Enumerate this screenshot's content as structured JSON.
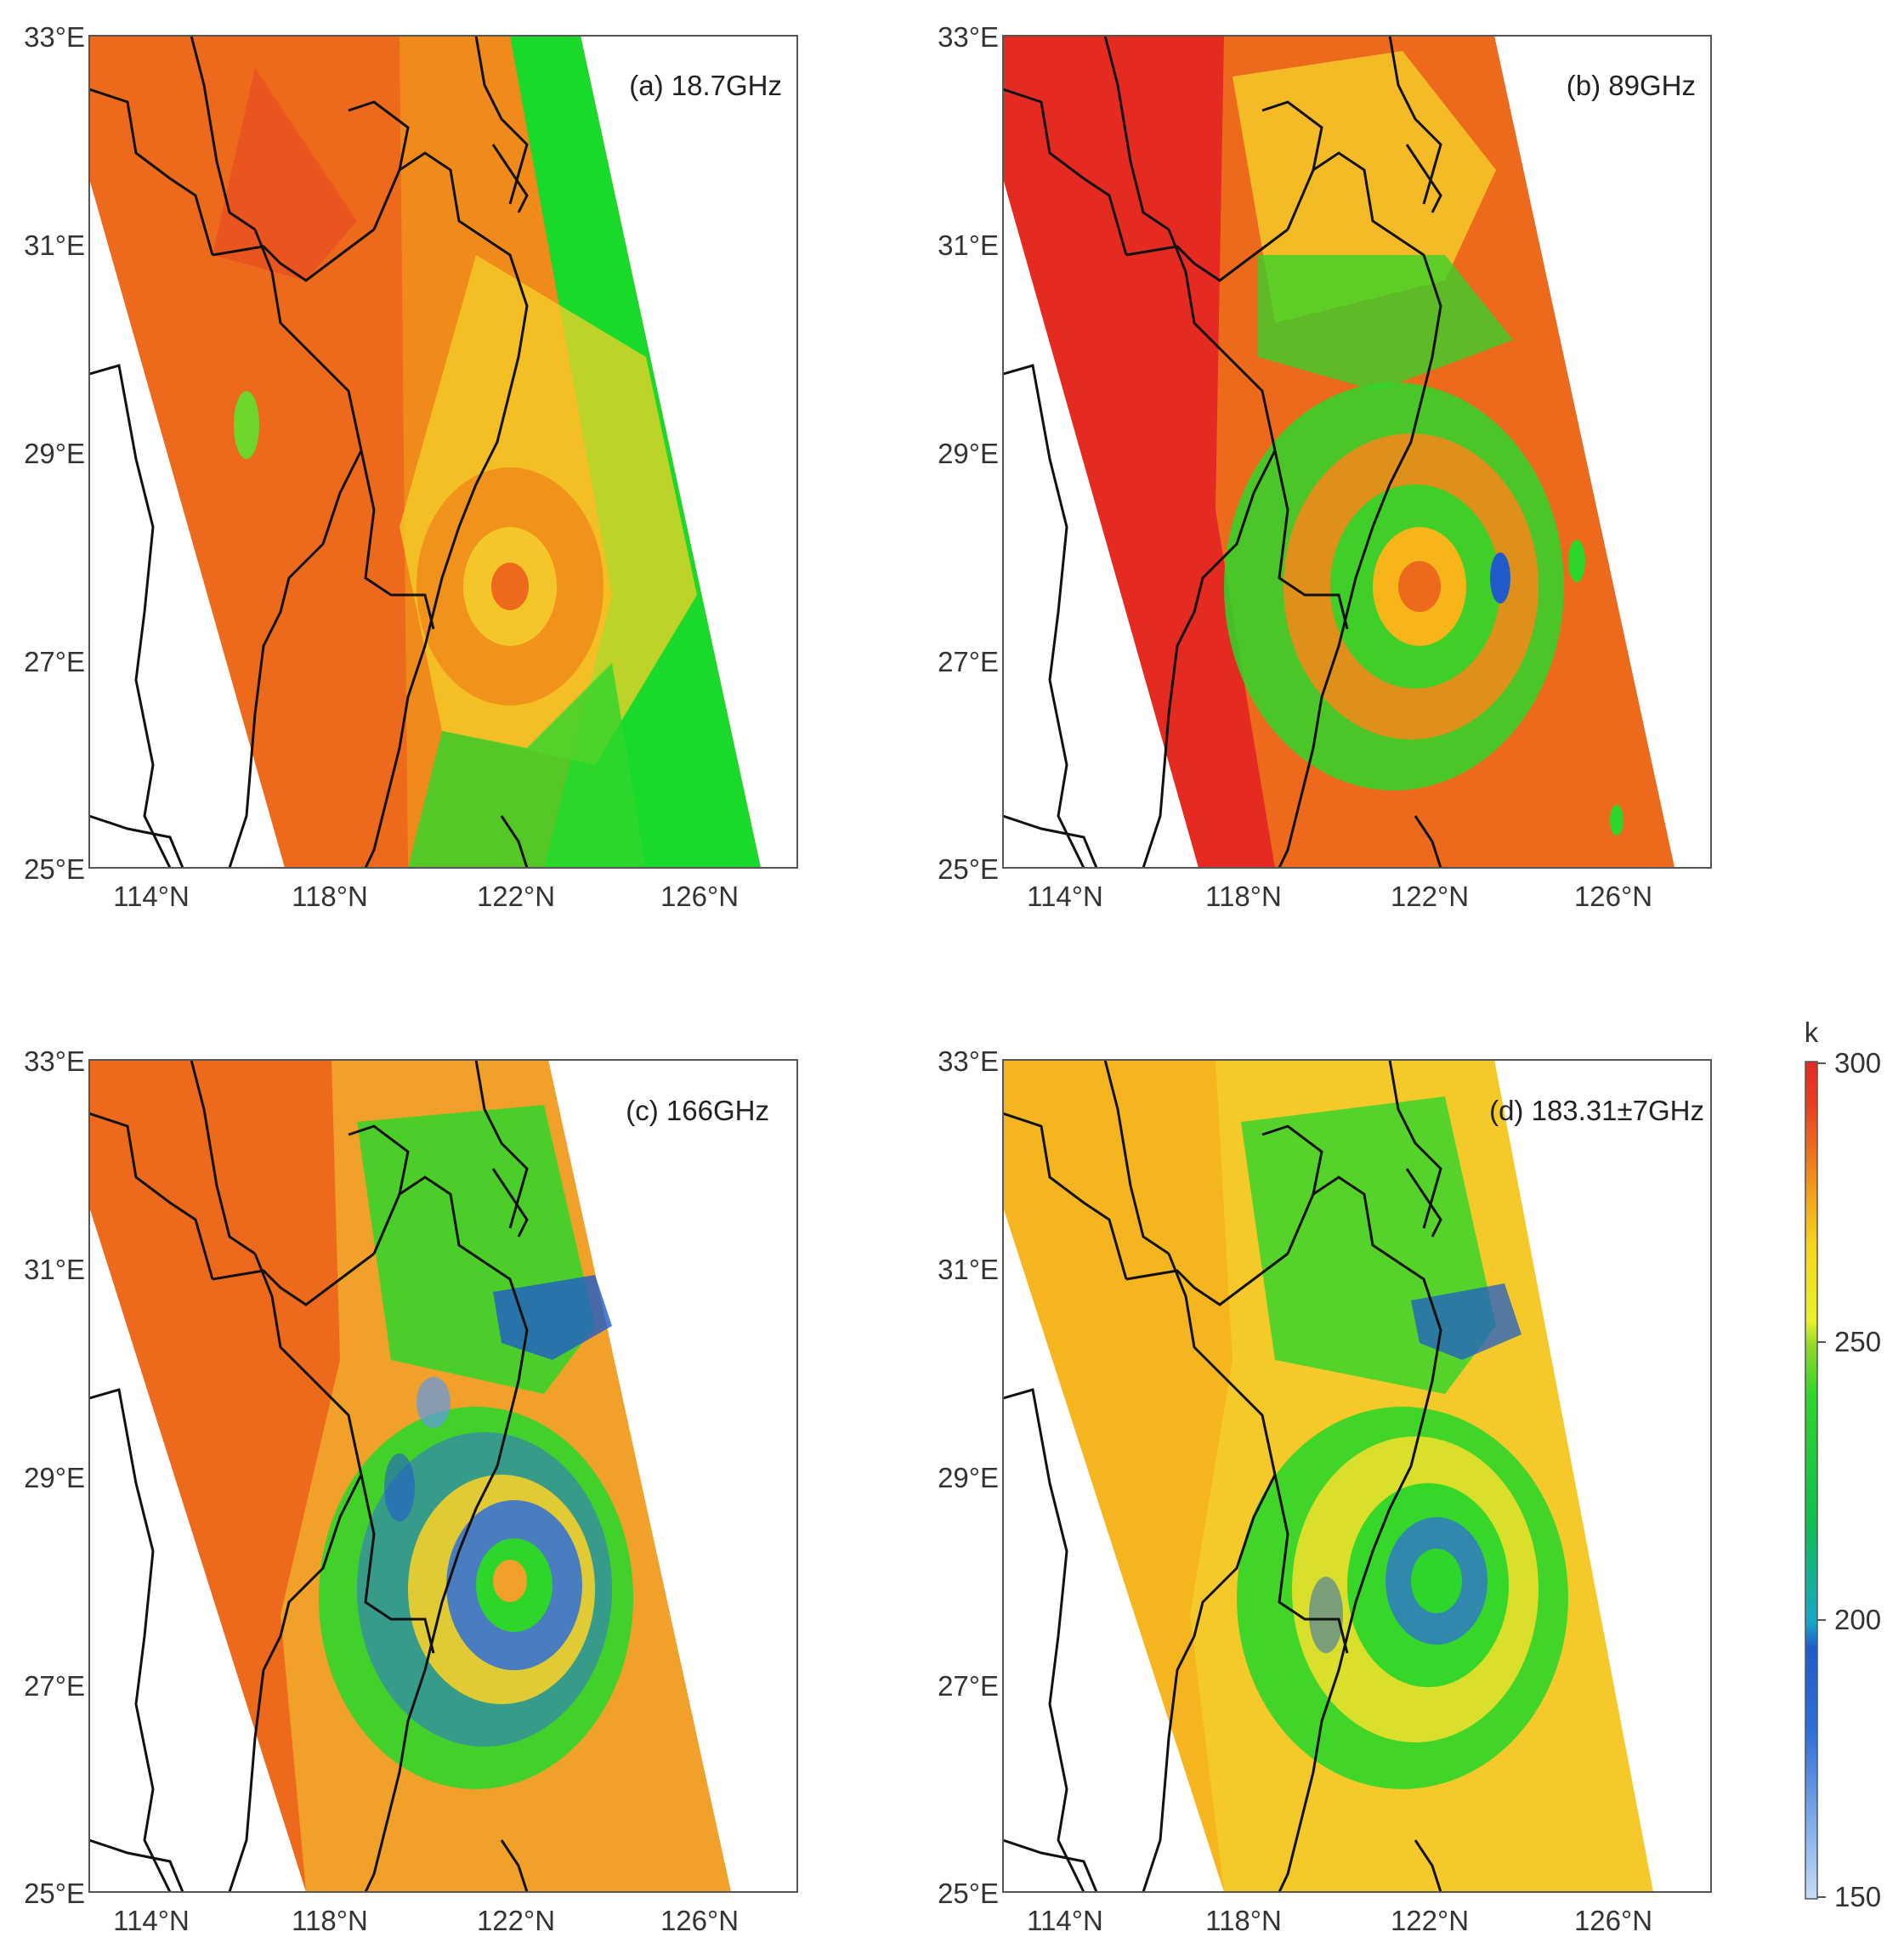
{
  "figure": {
    "colorbar": {
      "unit": "k",
      "ticks": [
        "150",
        "200",
        "250",
        "300"
      ],
      "range": [
        150,
        300
      ],
      "colors": [
        "#b6d0f5",
        "#5e98e8",
        "#2f6fd9",
        "#1f5cc9",
        "#18a6c8",
        "#0fbf5a",
        "#19c73a",
        "#2ed62a",
        "#7fdc2a",
        "#d8f02a",
        "#f6ec23",
        "#f9d61e",
        "#f7b51a",
        "#f08a1a",
        "#ed6a1d",
        "#e52a22"
      ]
    },
    "axes": {
      "lat_ticks": [
        "33°E",
        "31°E",
        "29°E",
        "27°E",
        "25°E"
      ],
      "lon_ticks": [
        "114°N",
        "118°N",
        "122°N",
        "126°N"
      ],
      "lat_range": [
        25,
        33
      ],
      "lon_range": [
        113,
        127
      ]
    },
    "panels": [
      {
        "id": "a",
        "label": "(a) 18.7GHz",
        "dominant_color": "#ed6a1d",
        "ocean_color": "#19d92a"
      },
      {
        "id": "b",
        "label": "(b) 89GHz",
        "dominant_color": "#e52a22",
        "ocean_color": "#ed6a1d"
      },
      {
        "id": "c",
        "label": "(c) 166GHz",
        "dominant_color": "#ed6a1d",
        "ocean_color": "#f1a02a"
      },
      {
        "id": "d",
        "label": "(d) 183.31±7GHz",
        "dominant_color": "#f5b51f",
        "ocean_color": "#f6c92a"
      }
    ]
  }
}
